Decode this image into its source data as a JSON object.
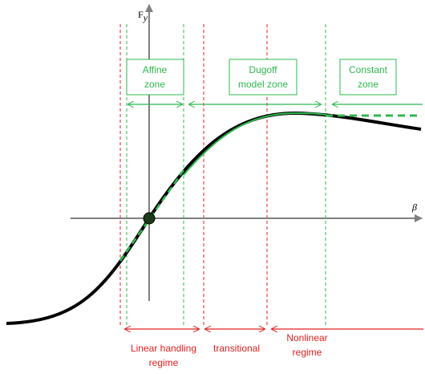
{
  "axes": {
    "y_label": "F",
    "y_subscript": "y",
    "x_label": "β"
  },
  "zones": [
    {
      "lines": [
        "Affine",
        "zone"
      ]
    },
    {
      "lines": [
        "Dugoff",
        "model zone"
      ]
    },
    {
      "lines": [
        "Constant",
        "zone"
      ]
    }
  ],
  "regimes": [
    {
      "lines": [
        "Linear handling",
        "regime"
      ]
    },
    {
      "lines": [
        "transitional"
      ]
    },
    {
      "lines": [
        "Nonlinear",
        "regime"
      ]
    }
  ]
}
